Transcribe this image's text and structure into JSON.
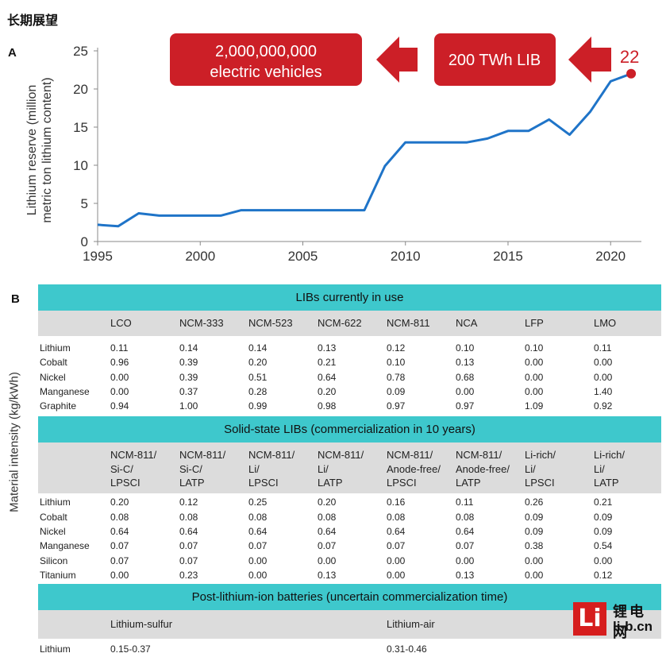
{
  "heading": "长期展望",
  "panel_a_label": "A",
  "panel_b_label": "B",
  "chart_data": {
    "type": "line",
    "title": "",
    "ylabel_line1": "Lithium reserve (million",
    "ylabel_line2": "metric ton lithium content)",
    "xlabel": "",
    "xlim": [
      1995,
      2021.5
    ],
    "ylim": [
      0,
      25
    ],
    "xticks": [
      1995,
      2000,
      2005,
      2010,
      2015,
      2020
    ],
    "yticks": [
      0,
      5,
      10,
      15,
      20,
      25
    ],
    "series": [
      {
        "color": "#1f74c8",
        "x": [
          1995,
          1996,
          1997,
          1998,
          1999,
          2000,
          2001,
          2002,
          2003,
          2004,
          2005,
          2006,
          2007,
          2008,
          2009,
          2010,
          2011,
          2012,
          2013,
          2014,
          2015,
          2016,
          2017,
          2018,
          2019,
          2020,
          2021
        ],
        "y": [
          2.2,
          2.0,
          3.7,
          3.4,
          3.4,
          3.4,
          3.4,
          4.1,
          4.1,
          4.1,
          4.1,
          4.1,
          4.1,
          4.1,
          9.9,
          13.0,
          13.0,
          13.0,
          13.0,
          13.5,
          14.5,
          14.5,
          16.0,
          14.0,
          17.0,
          21.0,
          22.0
        ]
      }
    ],
    "annotation_value": "22",
    "annotation_color": "#cc1f27",
    "callouts": {
      "box1_line1": "2,000,000,000",
      "box1_line2": "electric vehicles",
      "box2": "200 TWh LIB",
      "box_color": "#cc1f27"
    }
  },
  "material_label": "Material intensity (kg/kWh)",
  "table1": {
    "title": "LIBs currently in use",
    "columns": [
      "LCO",
      "NCM-333",
      "NCM-523",
      "NCM-622",
      "NCM-811",
      "NCA",
      "LFP",
      "LMO"
    ],
    "rows": [
      {
        "name": "Lithium",
        "values": [
          "0.11",
          "0.14",
          "0.14",
          "0.13",
          "0.12",
          "0.10",
          "0.10",
          "0.11"
        ]
      },
      {
        "name": "Cobalt",
        "values": [
          "0.96",
          "0.39",
          "0.20",
          "0.21",
          "0.10",
          "0.13",
          "0.00",
          "0.00"
        ]
      },
      {
        "name": "Nickel",
        "values": [
          "0.00",
          "0.39",
          "0.51",
          "0.64",
          "0.78",
          "0.68",
          "0.00",
          "0.00"
        ]
      },
      {
        "name": "Manganese",
        "values": [
          "0.00",
          "0.37",
          "0.28",
          "0.20",
          "0.09",
          "0.00",
          "0.00",
          "1.40"
        ]
      },
      {
        "name": "Graphite",
        "values": [
          "0.94",
          "1.00",
          "0.99",
          "0.98",
          "0.97",
          "0.97",
          "1.09",
          "0.92"
        ]
      }
    ]
  },
  "table2": {
    "title": "Solid-state LIBs (commercialization in 10 years)",
    "columns": [
      [
        "NCM-811/",
        "Si-C/",
        "LPSCI"
      ],
      [
        "NCM-811/",
        "Si-C/",
        "LATP"
      ],
      [
        "NCM-811/",
        "Li/",
        "LPSCI"
      ],
      [
        "NCM-811/",
        "Li/",
        "LATP"
      ],
      [
        "NCM-811/",
        "Anode-free/",
        "LPSCI"
      ],
      [
        "NCM-811/",
        "Anode-free/",
        "LATP"
      ],
      [
        "Li-rich/",
        "Li/",
        "LPSCI"
      ],
      [
        "Li-rich/",
        "Li/",
        "LATP"
      ]
    ],
    "rows": [
      {
        "name": "Lithium",
        "values": [
          "0.20",
          "0.12",
          "0.25",
          "0.20",
          "0.16",
          "0.11",
          "0.26",
          "0.21"
        ]
      },
      {
        "name": "Cobalt",
        "values": [
          "0.08",
          "0.08",
          "0.08",
          "0.08",
          "0.08",
          "0.08",
          "0.09",
          "0.09"
        ]
      },
      {
        "name": "Nickel",
        "values": [
          "0.64",
          "0.64",
          "0.64",
          "0.64",
          "0.64",
          "0.64",
          "0.09",
          "0.09"
        ]
      },
      {
        "name": "Manganese",
        "values": [
          "0.07",
          "0.07",
          "0.07",
          "0.07",
          "0.07",
          "0.07",
          "0.38",
          "0.54"
        ]
      },
      {
        "name": "Silicon",
        "values": [
          "0.07",
          "0.07",
          "0.00",
          "0.00",
          "0.00",
          "0.00",
          "0.00",
          "0.00"
        ]
      },
      {
        "name": "Titanium",
        "values": [
          "0.00",
          "0.23",
          "0.00",
          "0.13",
          "0.00",
          "0.13",
          "0.00",
          "0.12"
        ]
      }
    ]
  },
  "table3": {
    "title": "Post-lithium-ion batteries (uncertain commercialization time)",
    "columns": [
      "Lithium-sulfur",
      "Lithium-air"
    ],
    "rows": [
      {
        "name": "Lithium",
        "values": [
          "0.15-0.37",
          "0.31-0.46"
        ]
      }
    ]
  },
  "logo": {
    "mark": "Li",
    "cn": "锂电网",
    "url": "li-b.cn",
    "color": "#d61e1e"
  }
}
